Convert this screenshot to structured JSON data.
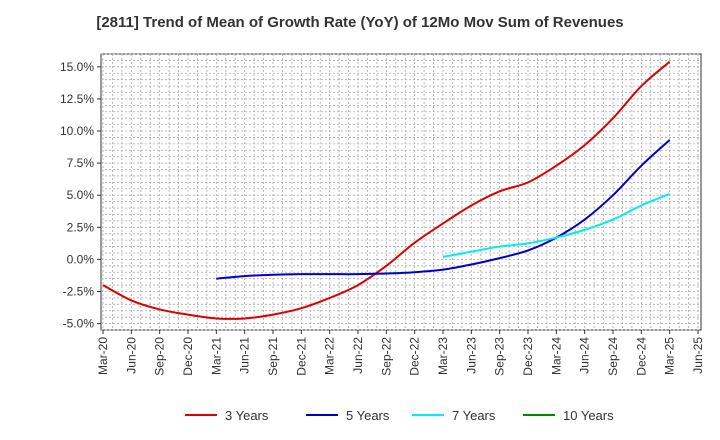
{
  "chart_data": {
    "type": "line",
    "title": "[2811]  Trend of Mean of Growth Rate (YoY) of 12Mo Mov Sum of Revenues",
    "xlabel": "",
    "ylabel": "",
    "x_ticks": [
      "Mar-20",
      "Jun-20",
      "Sep-20",
      "Dec-20",
      "Mar-21",
      "Jun-21",
      "Sep-21",
      "Dec-21",
      "Mar-22",
      "Jun-22",
      "Sep-22",
      "Dec-22",
      "Mar-23",
      "Jun-23",
      "Sep-23",
      "Dec-23",
      "Mar-24",
      "Jun-24",
      "Sep-24",
      "Dec-24",
      "Mar-25",
      "Jun-25"
    ],
    "y_ticks": [
      "15.0%",
      "12.5%",
      "10.0%",
      "7.5%",
      "5.0%",
      "2.5%",
      "0.0%",
      "-2.5%",
      "-5.0%"
    ],
    "y_tick_values": [
      15.0,
      12.5,
      10.0,
      7.5,
      5.0,
      2.5,
      0.0,
      -2.5,
      -5.0
    ],
    "ylim": [
      -5.5,
      16.0
    ],
    "grid": true,
    "legend_position": "bottom",
    "series": [
      {
        "name": "3 Years",
        "color": "#dd0000",
        "points": [
          [
            0,
            -2.0
          ],
          [
            1,
            -3.2
          ],
          [
            2,
            -3.9
          ],
          [
            3,
            -4.3
          ],
          [
            4,
            -4.6
          ],
          [
            5,
            -4.6
          ],
          [
            6,
            -4.3
          ],
          [
            7,
            -3.8
          ],
          [
            8,
            -3.0
          ],
          [
            9,
            -2.0
          ],
          [
            10,
            -0.5
          ],
          [
            11,
            1.3
          ],
          [
            12,
            2.8
          ],
          [
            13,
            4.2
          ],
          [
            14,
            5.3
          ],
          [
            15,
            6.0
          ],
          [
            16,
            7.3
          ],
          [
            17,
            8.9
          ],
          [
            18,
            11.0
          ],
          [
            19,
            13.5
          ],
          [
            20,
            15.4
          ]
        ]
      },
      {
        "name": "5 Years",
        "color": "#0000cc",
        "points": [
          [
            4,
            -1.5
          ],
          [
            5,
            -1.3
          ],
          [
            6,
            -1.2
          ],
          [
            7,
            -1.15
          ],
          [
            8,
            -1.15
          ],
          [
            9,
            -1.15
          ],
          [
            10,
            -1.1
          ],
          [
            11,
            -1.0
          ],
          [
            12,
            -0.8
          ],
          [
            13,
            -0.4
          ],
          [
            14,
            0.1
          ],
          [
            15,
            0.7
          ],
          [
            16,
            1.7
          ],
          [
            17,
            3.1
          ],
          [
            18,
            5.0
          ],
          [
            19,
            7.3
          ],
          [
            20,
            9.3
          ]
        ]
      },
      {
        "name": "7 Years",
        "color": "#00eeee",
        "points": [
          [
            12,
            0.2
          ],
          [
            13,
            0.6
          ],
          [
            14,
            1.0
          ],
          [
            15,
            1.25
          ],
          [
            16,
            1.7
          ],
          [
            17,
            2.3
          ],
          [
            18,
            3.1
          ],
          [
            19,
            4.2
          ],
          [
            20,
            5.1
          ]
        ]
      },
      {
        "name": "10 Years",
        "color": "#008800",
        "points": []
      }
    ]
  }
}
